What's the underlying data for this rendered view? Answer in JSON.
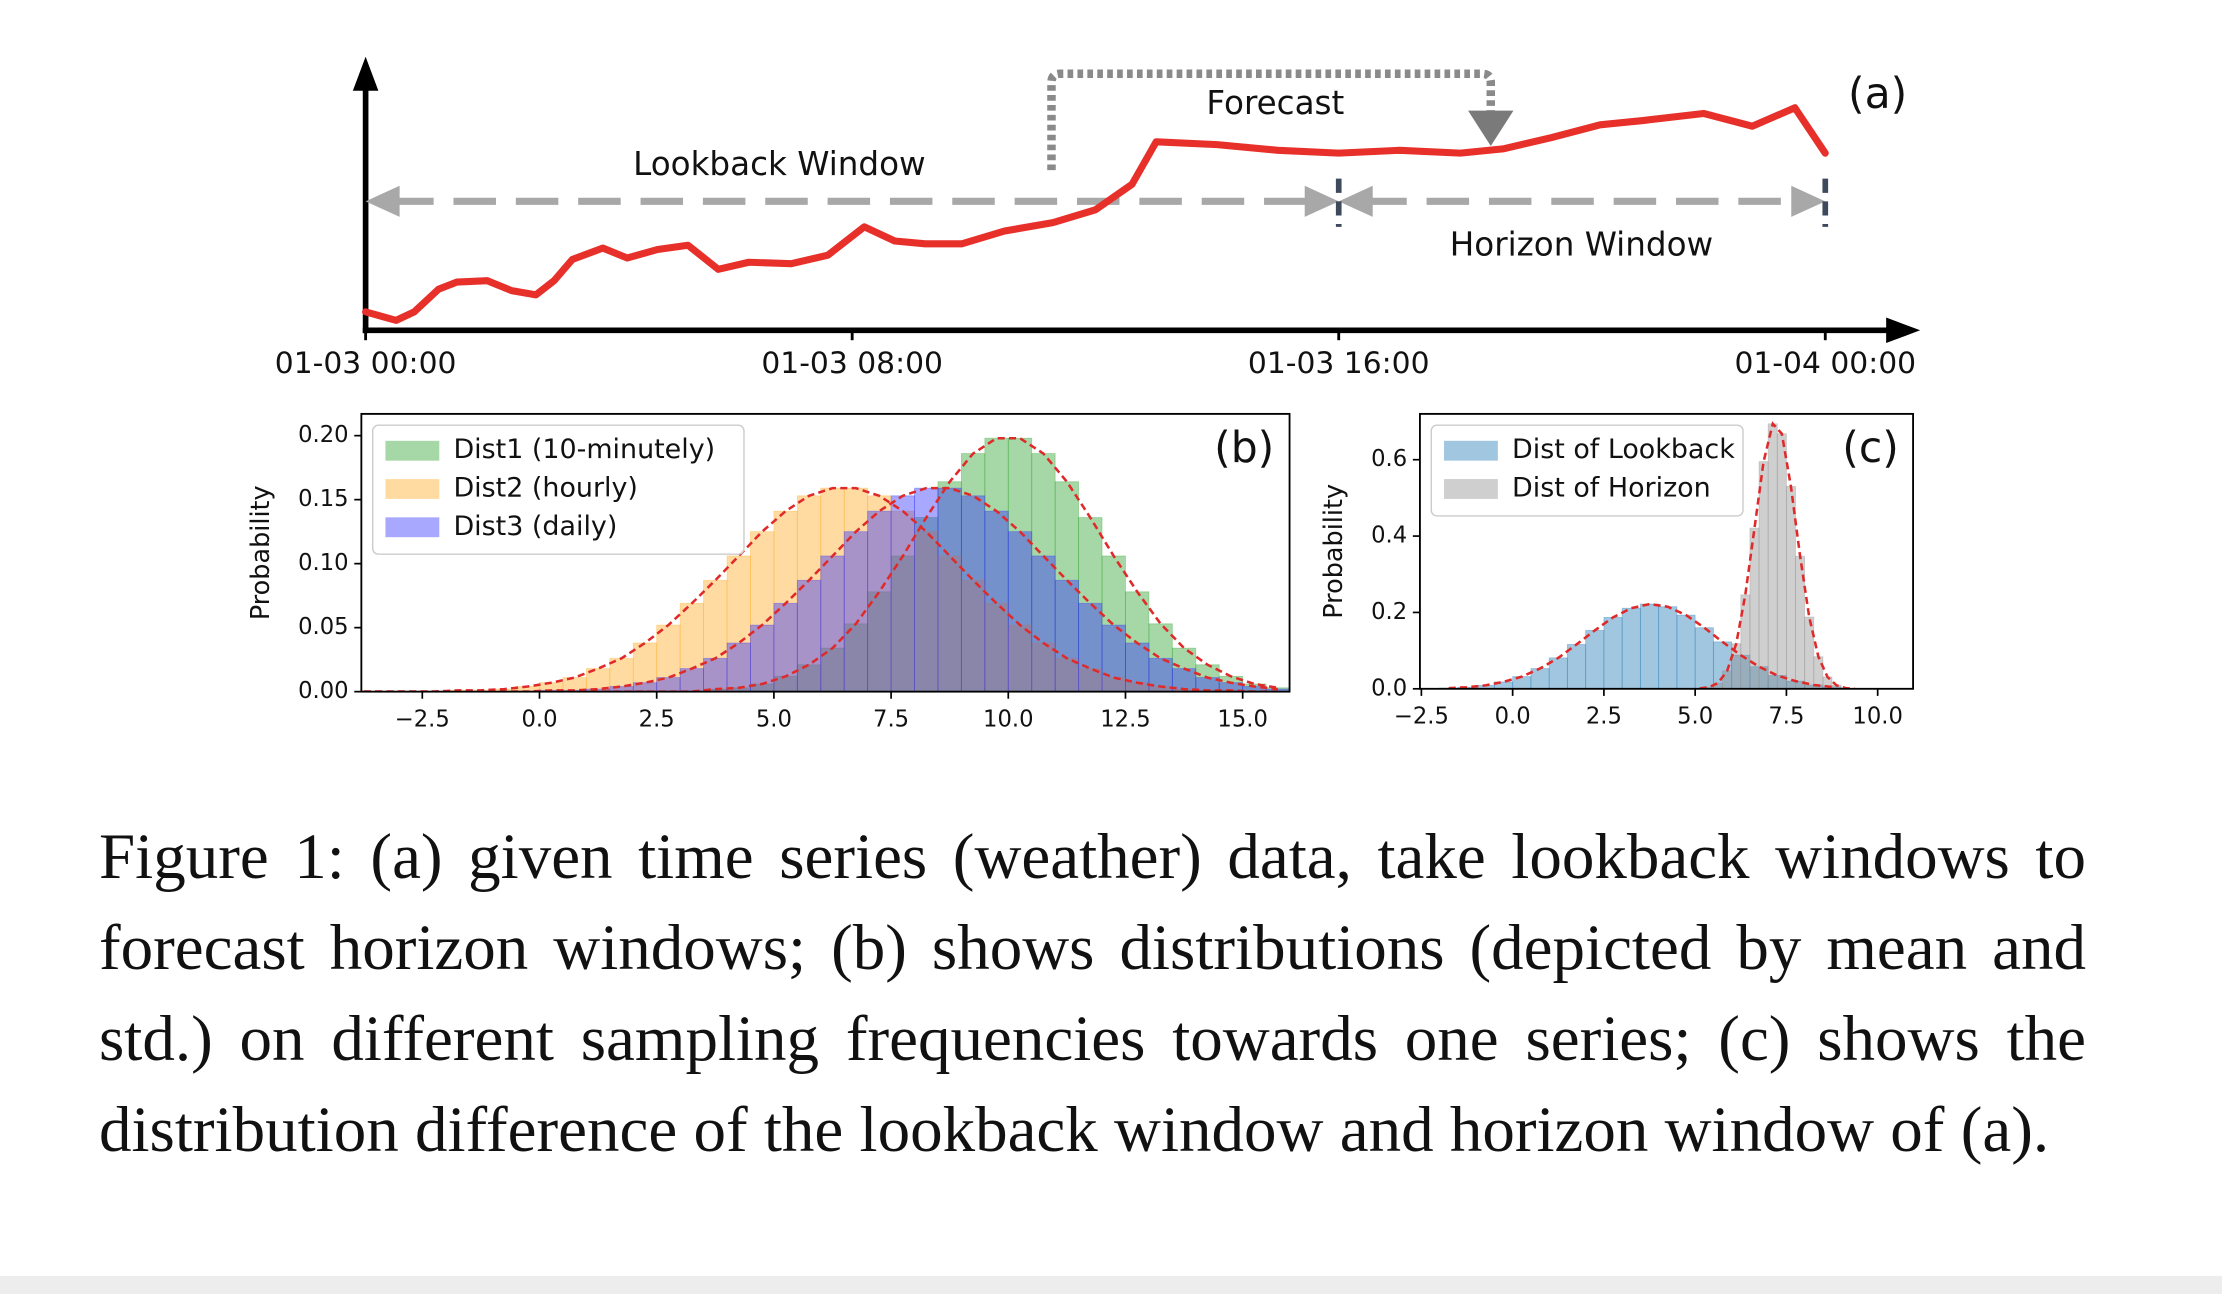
{
  "chart_data": [
    {
      "type": "line",
      "label": "(a)",
      "annotations": {
        "lookback": "Lookback Window",
        "forecast": "Forecast",
        "horizon": "Horizon Window"
      },
      "x": [
        0,
        0.5,
        0.8,
        1.2,
        1.5,
        2,
        2.4,
        2.8,
        3.1,
        3.4,
        3.9,
        4.3,
        4.8,
        5.3,
        5.8,
        6.3,
        7,
        7.6,
        8.2,
        8.7,
        9.2,
        9.8,
        10.5,
        11.3,
        12,
        12.6,
        13,
        14,
        15,
        16,
        17,
        18,
        18.7,
        19.5,
        20.3,
        21,
        22,
        22.8,
        23.5,
        24
      ],
      "values": [
        13,
        7,
        13,
        29,
        34,
        35,
        28,
        25,
        35,
        50,
        58,
        51,
        57,
        60,
        43,
        48,
        47,
        53,
        73,
        63,
        61,
        61,
        70,
        76,
        85,
        103,
        133,
        131,
        127,
        125,
        127,
        125,
        128,
        136,
        145,
        148,
        153,
        144,
        157,
        125
      ],
      "color": "#e8302a",
      "xlim": [
        0,
        25.56
      ],
      "ylim": [
        0,
        193
      ],
      "xticks": [
        {
          "value": 0,
          "label": "01-03 00:00"
        },
        {
          "value": 8,
          "label": "01-03 08:00"
        },
        {
          "value": 16,
          "label": "01-03 16:00"
        },
        {
          "value": 24,
          "label": "01-04 00:00"
        }
      ]
    },
    {
      "type": "histogram",
      "label": "(b)",
      "ylabel": "Probability",
      "legend": "upper left",
      "fit_color": "#e02a2a",
      "bins": [
        -4,
        -3.5,
        -3,
        -2.5,
        -2,
        -1.5,
        -1,
        -0.5,
        0,
        0.5,
        1,
        1.5,
        2,
        2.5,
        3,
        3.5,
        4,
        4.5,
        5,
        5.5,
        6,
        6.5,
        7,
        7.5,
        8,
        8.5,
        9,
        9.5,
        10,
        10.5,
        11,
        11.5,
        12,
        12.5,
        13,
        13.5,
        14,
        14.5,
        15,
        15.5,
        16
      ],
      "series": [
        {
          "name": "Dist1 (10-minutely)",
          "color": "#2ca02c",
          "values": [
            0,
            0,
            0,
            0,
            0,
            0,
            0,
            0,
            0,
            0,
            0,
            0,
            0,
            0,
            0,
            0.002,
            0.003,
            0.006,
            0.012,
            0.021,
            0.034,
            0.053,
            0.078,
            0.106,
            0.136,
            0.164,
            0.186,
            0.198,
            0.198,
            0.186,
            0.164,
            0.136,
            0.106,
            0.078,
            0.053,
            0.034,
            0.021,
            0.012,
            0.006,
            0.003
          ]
        },
        {
          "name": "Dist2 (hourly)",
          "color": "#ffaa1e",
          "values": [
            0,
            0,
            0,
            0,
            0.001,
            0.001,
            0.002,
            0.004,
            0.007,
            0.011,
            0.018,
            0.026,
            0.038,
            0.052,
            0.069,
            0.087,
            0.106,
            0.125,
            0.141,
            0.153,
            0.159,
            0.159,
            0.153,
            0.141,
            0.125,
            0.106,
            0.087,
            0.069,
            0.052,
            0.038,
            0.026,
            0.018,
            0.011,
            0.007,
            0.004,
            0.002,
            0.001,
            0.001,
            0,
            0
          ]
        },
        {
          "name": "Dist3 (daily)",
          "color": "#3030ff",
          "values": [
            0,
            0,
            0,
            0,
            0,
            0,
            0,
            0,
            0.001,
            0.001,
            0.002,
            0.004,
            0.007,
            0.011,
            0.018,
            0.026,
            0.038,
            0.052,
            0.069,
            0.087,
            0.106,
            0.125,
            0.141,
            0.153,
            0.159,
            0.159,
            0.153,
            0.141,
            0.125,
            0.106,
            0.087,
            0.069,
            0.052,
            0.038,
            0.026,
            0.018,
            0.011,
            0.007,
            0.004,
            0.002
          ]
        }
      ],
      "xlim": [
        -3.8,
        16
      ],
      "ylim": [
        0,
        0.217
      ],
      "xticks": [
        {
          "value": -2.5,
          "label": "−2.5"
        },
        {
          "value": 0,
          "label": "0.0"
        },
        2.5,
        {
          "value": 5,
          "label": "5.0"
        },
        7.5,
        {
          "value": 10,
          "label": "10.0"
        },
        12.5,
        {
          "value": 15,
          "label": "15.0"
        }
      ],
      "yticks": [
        {
          "value": 0,
          "label": "0.00"
        },
        0.05,
        {
          "value": 0.1,
          "label": "0.10"
        },
        0.15,
        {
          "value": 0.2,
          "label": "0.20"
        }
      ]
    },
    {
      "type": "histogram",
      "label": "(c)",
      "ylabel": "Probability",
      "legend": "upper left",
      "fit_color": "#e02a2a",
      "series": [
        {
          "name": "Dist of Lookback",
          "color": "#1f77b4",
          "bins": [
            -2,
            -1.5,
            -1,
            -0.5,
            0,
            0.5,
            1,
            1.5,
            2,
            2.5,
            3,
            3.5,
            4,
            4.5,
            5,
            5.5,
            6,
            6.5,
            7,
            7.5,
            8,
            8.5,
            9
          ],
          "values": [
            0.002,
            0.004,
            0.009,
            0.018,
            0.032,
            0.053,
            0.081,
            0.116,
            0.153,
            0.187,
            0.211,
            0.222,
            0.215,
            0.193,
            0.16,
            0.123,
            0.088,
            0.058,
            0.035,
            0.02,
            0.01,
            0.005
          ]
        },
        {
          "name": "Dist of Horizon",
          "color": "#8c8c8c",
          "bins": [
            5,
            5.25,
            5.5,
            5.75,
            6,
            6.25,
            6.5,
            6.75,
            7,
            7.25,
            7.5,
            7.75,
            8,
            8.25,
            8.5,
            8.75,
            9,
            9.25,
            9.5
          ],
          "values": [
            0.001,
            0.004,
            0.015,
            0.047,
            0.118,
            0.246,
            0.421,
            0.595,
            0.694,
            0.668,
            0.53,
            0.347,
            0.188,
            0.084,
            0.031,
            0.009,
            0.002,
            0
          ]
        }
      ],
      "xlim": [
        -2.54,
        10.97
      ],
      "ylim": [
        0,
        0.72
      ],
      "xticks": [
        {
          "value": -2.5,
          "label": "−2.5"
        },
        {
          "value": 0,
          "label": "0.0"
        },
        2.5,
        {
          "value": 5,
          "label": "5.0"
        },
        7.5,
        {
          "value": 10,
          "label": "10.0"
        }
      ],
      "yticks": [
        {
          "value": 0,
          "label": "0.0"
        },
        0.2,
        0.4,
        0.6
      ]
    }
  ],
  "caption": "Figure 1: (a) given time series (weather) data, take lookback windows to forecast horizon windows; (b) shows distributions (depicted by mean and std.) on different sampling frequencies towards one series; (c) shows the distribution difference of the lookback window and horizon window of (a)."
}
